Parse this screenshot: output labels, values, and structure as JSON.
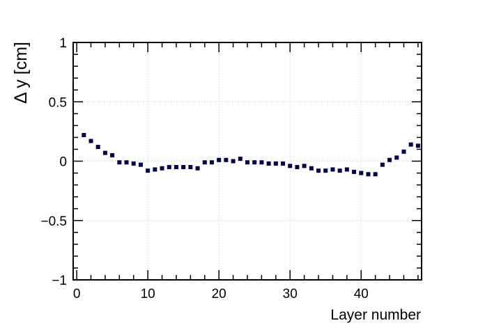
{
  "chart_data": {
    "type": "scatter",
    "title": "",
    "xlabel": "Layer number",
    "ylabel": "Δ y [cm]",
    "xlim": [
      -0.5,
      48.5
    ],
    "ylim": [
      -1,
      1
    ],
    "x_ticks": [
      "0",
      "10",
      "20",
      "30",
      "40"
    ],
    "y_ticks": [
      "1",
      "0.5",
      "0",
      "−0.5",
      "−1"
    ],
    "grid": true,
    "marker_color": "#00004d",
    "series": [
      {
        "x": [
          1,
          2,
          3,
          4,
          5,
          6,
          7,
          8,
          9,
          10,
          11,
          12,
          13,
          14,
          15,
          16,
          17,
          18,
          19,
          20,
          21,
          22,
          23,
          24,
          25,
          26,
          27,
          28,
          29,
          30,
          31,
          32,
          33,
          34,
          35,
          36,
          37,
          38,
          39,
          40,
          41,
          42,
          43,
          44,
          45,
          46,
          47,
          48
        ],
        "y": [
          0.22,
          0.17,
          0.12,
          0.07,
          0.05,
          -0.01,
          -0.01,
          -0.02,
          -0.03,
          -0.08,
          -0.07,
          -0.06,
          -0.05,
          -0.05,
          -0.05,
          -0.05,
          -0.06,
          -0.01,
          -0.01,
          0.01,
          0.01,
          0.0,
          0.02,
          -0.01,
          -0.01,
          -0.01,
          -0.02,
          -0.02,
          -0.02,
          -0.04,
          -0.05,
          -0.04,
          -0.06,
          -0.08,
          -0.08,
          -0.07,
          -0.08,
          -0.07,
          -0.09,
          -0.1,
          -0.11,
          -0.11,
          -0.03,
          0.01,
          0.03,
          0.08,
          0.14,
          0.13
        ]
      }
    ]
  }
}
